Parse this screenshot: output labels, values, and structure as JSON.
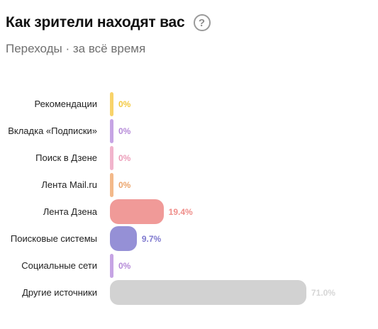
{
  "header": {
    "title": "Как зрители находят вас",
    "help_icon_glyph": "?",
    "subtitle": "Переходы · за всё время"
  },
  "chart_data": {
    "type": "bar",
    "orientation": "horizontal",
    "categories": [
      "Рекомендации",
      "Вкладка «Подписки»",
      "Поиск в Дзене",
      "Лента Mail.ru",
      "Лента Дзена",
      "Поисковые системы",
      "Социальные сети",
      "Другие источники"
    ],
    "values": [
      0,
      0,
      0,
      0,
      19.4,
      9.7,
      0,
      71.0
    ],
    "value_labels": [
      "0%",
      "0%",
      "0%",
      "0%",
      "19.4%",
      "9.7%",
      "0%",
      "71.0%"
    ],
    "colors": [
      "#f8d36a",
      "#c6a4e4",
      "#f1b4cc",
      "#f3b98a",
      "#f09a98",
      "#9590d6",
      "#c6a4e4",
      "#d2d2d2"
    ],
    "label_colors": [
      "#f3c93f",
      "#b58ad8",
      "#ec9db9",
      "#eba46b",
      "#ef8e8a",
      "#7f79cf",
      "#b58ad8",
      "#d6d6d6"
    ],
    "unit": "%",
    "xlim": [
      0,
      100
    ]
  }
}
